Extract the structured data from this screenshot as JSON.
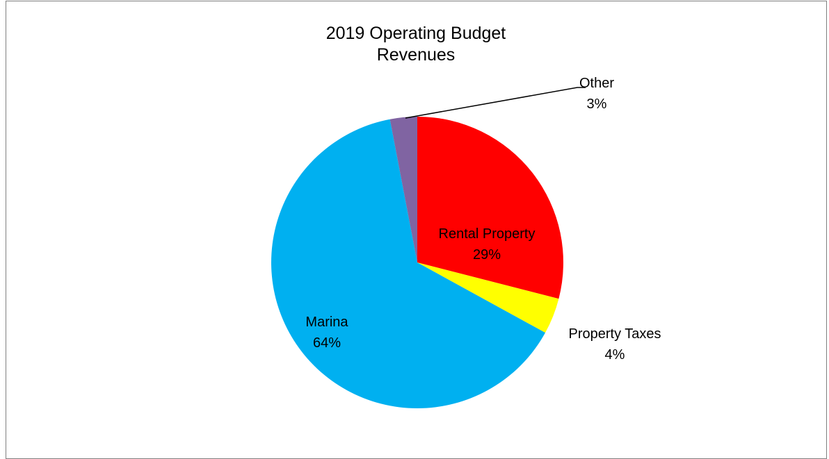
{
  "chart_data": {
    "type": "pie",
    "title": [
      "2019 Operating Budget",
      "Revenues"
    ],
    "slices": [
      {
        "label": "Rental Property",
        "value": 29,
        "display": "29%",
        "color": "#ff0000"
      },
      {
        "label": "Property Taxes",
        "value": 4,
        "display": "4%",
        "color": "#ffff00"
      },
      {
        "label": "Marina",
        "value": 64,
        "display": "64%",
        "color": "#00b0f0"
      },
      {
        "label": "Other",
        "value": 3,
        "display": "3%",
        "color": "#8064a2"
      }
    ],
    "legend": "none",
    "data_labels": "category-and-percentage"
  }
}
